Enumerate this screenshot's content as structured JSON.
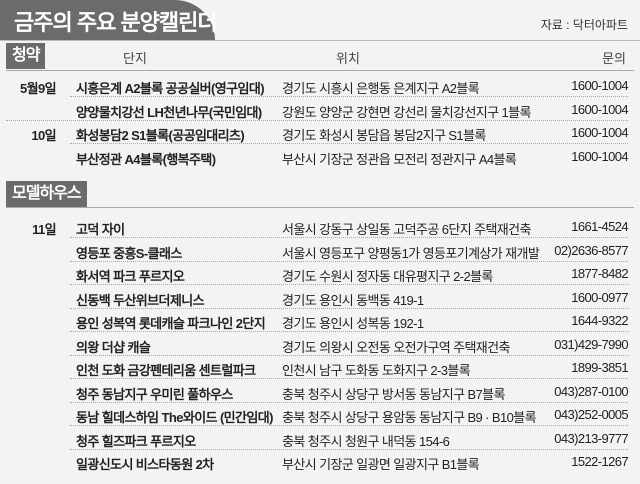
{
  "title": "금주의 주요 분양캘린더",
  "source": "자료 : 닥터아파트",
  "headers": {
    "complex": "단지",
    "location": "위치",
    "contact": "문의"
  },
  "sections": [
    {
      "label": "청약",
      "rows": [
        {
          "date": "5월9일",
          "name": "시흥은계 A2블록 공공실버(영구임대)",
          "location": "경기도 시흥시 은행동 은계지구 A2블록",
          "phone": "1600-1004"
        },
        {
          "date": "",
          "name": "양양물치강선 LH천년나무(국민임대)",
          "location": "강원도 양양군 강현면 강선리 물치강선지구 1블록",
          "phone": "1600-1004"
        },
        {
          "date": "10일",
          "name": "화성봉담2 S1블록(공공임대리츠)",
          "location": "경기도 화성시 봉담읍 봉담2지구 S1블록",
          "phone": "1600-1004"
        },
        {
          "date": "",
          "name": "부산정관 A4블록(행복주택)",
          "location": "부산시 기장군 정관읍 모전리 정관지구 A4블록",
          "phone": "1600-1004"
        }
      ]
    },
    {
      "label": "모델하우스",
      "rows": [
        {
          "date": "11일",
          "name": "고덕 자이",
          "location": "서울시 강동구 상일동 고덕주공 6단지 주택재건축",
          "phone": "1661-4524"
        },
        {
          "date": "",
          "name": "영등포 중흥S-클래스",
          "location": "서울시 영등포구 양평동1가 영등포기계상가 재개발",
          "phone": "02)2636-8577"
        },
        {
          "date": "",
          "name": "화서역 파크 푸르지오",
          "location": "경기도 수원시 정자동 대유평지구 2-2블록",
          "phone": "1877-8482"
        },
        {
          "date": "",
          "name": "신동백 두산위브더제니스",
          "location": "경기도 용인시 동백동 419-1",
          "phone": "1600-0977"
        },
        {
          "date": "",
          "name": "용인 성복역 롯데캐슬 파크나인 2단지",
          "location": "경기도 용인시 성복동 192-1",
          "phone": "1644-9322"
        },
        {
          "date": "",
          "name": "의왕 더샵 캐슬",
          "location": "경기도 의왕시 오전동 오전가구역 주택재건축",
          "phone": "031)429-7990"
        },
        {
          "date": "",
          "name": "인천 도화 금강펜테리움 센트럴파크",
          "location": "인천시 남구 도화동 도화지구 2-3블록",
          "phone": "1899-3851"
        },
        {
          "date": "",
          "name": "청주 동남지구 우미린 풀하우스",
          "location": "충북 청주시 상당구 방서동 동남지구 B7블록",
          "phone": "043)287-0100"
        },
        {
          "date": "",
          "name": "동남 힐데스하임 The와이드 (민간임대)",
          "location": "충북 청주시 상당구 용암동 동남지구 B9 · B10블록",
          "phone": "043)252-0005"
        },
        {
          "date": "",
          "name": "청주 힐즈파크 푸르지오",
          "location": "충북 청주시 청원구 내덕동 154-6",
          "phone": "043)213-9777"
        },
        {
          "date": "",
          "name": "일광신도시 비스타동원 2차",
          "location": "부산시 기장군 일광면 일광지구 B1블록",
          "phone": "1522-1267"
        }
      ]
    }
  ]
}
